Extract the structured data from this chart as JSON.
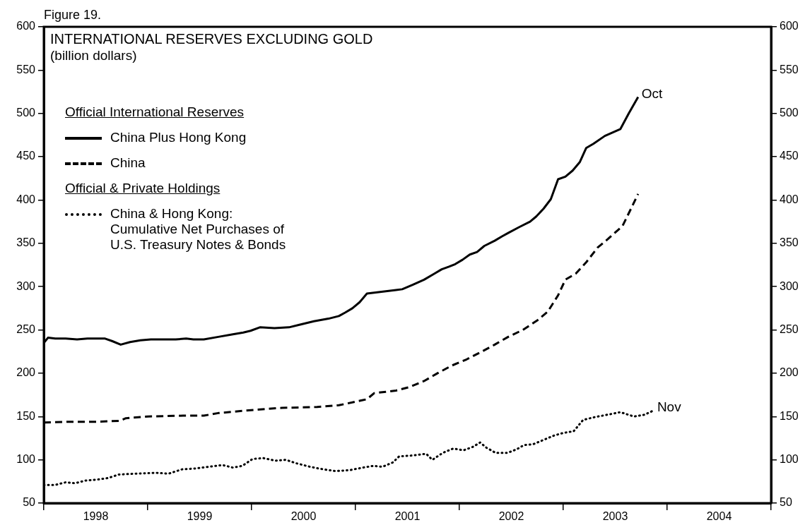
{
  "chart_data": {
    "type": "line",
    "title": "INTERNATIONAL RESERVES EXCLUDING GOLD",
    "subtitle": "(billion dollars)",
    "annotations": [
      "Figure 19.",
      "Official International Reserves",
      "Official & Private Holdings",
      {
        "text": "Oct",
        "x": 2003.72,
        "y": 519
      },
      {
        "text": "Nov",
        "x": 2003.87,
        "y": 157
      }
    ],
    "xlim": [
      1998,
      2005
    ],
    "xticks": [
      {
        "value": 1998,
        "label": null
      },
      {
        "value": 1998.5,
        "label": "1998"
      },
      {
        "value": 1999,
        "label": null
      },
      {
        "value": 1999.5,
        "label": "1999"
      },
      {
        "value": 2000,
        "label": null
      },
      {
        "value": 2000.5,
        "label": "2000"
      },
      {
        "value": 2001,
        "label": null
      },
      {
        "value": 2001.5,
        "label": "2001"
      },
      {
        "value": 2002,
        "label": null
      },
      {
        "value": 2002.5,
        "label": "2002"
      },
      {
        "value": 2003,
        "label": null
      },
      {
        "value": 2003.5,
        "label": "2003"
      },
      {
        "value": 2004,
        "label": null
      },
      {
        "value": 2004.5,
        "label": "2004"
      },
      {
        "value": 2005,
        "label": null
      }
    ],
    "ylim": [
      50,
      600
    ],
    "yticks": [
      50,
      100,
      150,
      200,
      250,
      300,
      350,
      400,
      450,
      500,
      550,
      600
    ],
    "y2lim": [
      50,
      600
    ],
    "y2ticks": [
      50,
      100,
      150,
      200,
      250,
      300,
      350,
      400,
      450,
      500,
      550,
      600
    ],
    "grid": false,
    "legend": "top left",
    "marker": "none",
    "series": [
      {
        "name": "China Plus Hong Kong",
        "color": "#000000",
        "line_style": "solid",
        "x": [
          1998,
          1998.04,
          1998.11,
          1998.21,
          1998.32,
          1998.42,
          1998.59,
          1998.66,
          1998.74,
          1998.83,
          1998.93,
          1999.03,
          1999.13,
          1999.27,
          1999.37,
          1999.44,
          1999.54,
          1999.68,
          1999.82,
          1999.92,
          1999.99,
          2000.08,
          2000.22,
          2000.36,
          2000.46,
          2000.6,
          2000.74,
          2000.84,
          2000.9,
          2000.97,
          2001.04,
          2001.11,
          2001.25,
          2001.39,
          2001.45,
          2001.55,
          2001.66,
          2001.76,
          2001.83,
          2001.9,
          2001.96,
          2002.03,
          2002.1,
          2002.17,
          2002.24,
          2002.34,
          2002.41,
          2002.47,
          2002.58,
          2002.68,
          2002.74,
          2002.81,
          2002.88,
          2002.95,
          2003.02,
          2003.09,
          2003.16,
          2003.22,
          2003.29,
          2003.4,
          2003.55,
          2003.63,
          2003.72
        ],
        "values": [
          235,
          241,
          240,
          240,
          239,
          240,
          240,
          237,
          233,
          236,
          238,
          239,
          239,
          239,
          240,
          239,
          239,
          242,
          245,
          247,
          249,
          253,
          252,
          253,
          256,
          260,
          263,
          266,
          270,
          275,
          282,
          292,
          294,
          296,
          297,
          302,
          308,
          315,
          320,
          323,
          326,
          331,
          337,
          340,
          347,
          353,
          358,
          362,
          369,
          375,
          381,
          390,
          401,
          424,
          427,
          434,
          444,
          460,
          465,
          474,
          482,
          500,
          519
        ]
      },
      {
        "name": "China",
        "color": "#000000",
        "line_style": "dashed",
        "x": [
          1998,
          1998.25,
          1998.52,
          1998.73,
          1998.79,
          1999,
          1999.34,
          1999.54,
          1999.68,
          1999.95,
          2000.29,
          2000.63,
          2000.84,
          2001.11,
          2001.18,
          2001.39,
          2001.52,
          2001.66,
          2001.79,
          2001.93,
          2002.07,
          2002.2,
          2002.34,
          2002.47,
          2002.61,
          2002.75,
          2002.85,
          2002.95,
          2003.02,
          2003.12,
          2003.22,
          2003.33,
          2003.43,
          2003.57,
          2003.66,
          2003.72
        ],
        "values": [
          143,
          144,
          144,
          145,
          148,
          150,
          151,
          151,
          154,
          157,
          160,
          161,
          163,
          170,
          177,
          180,
          184,
          191,
          200,
          209,
          216,
          224,
          233,
          242,
          250,
          261,
          271,
          290,
          308,
          315,
          328,
          345,
          355,
          370,
          392,
          407
        ]
      },
      {
        "name": "China & Hong Kong:\nCumulative Net Purchases of\nU.S. Treasury Notes & Bonds",
        "color": "#000000",
        "line_style": "dotted",
        "x": [
          1998,
          1998.11,
          1998.21,
          1998.3,
          1998.4,
          1998.5,
          1998.62,
          1998.72,
          1998.88,
          1999.08,
          1999.2,
          1999.33,
          1999.46,
          1999.59,
          1999.72,
          1999.82,
          1999.91,
          2000.01,
          2000.11,
          2000.23,
          2000.33,
          2000.43,
          2000.56,
          2000.69,
          2000.81,
          2000.94,
          2001.07,
          2001.17,
          2001.26,
          2001.36,
          2001.42,
          2001.55,
          2001.68,
          2001.74,
          2001.84,
          2001.94,
          2002.04,
          2002.13,
          2002.2,
          2002.26,
          2002.35,
          2002.46,
          2002.55,
          2002.62,
          2002.71,
          2002.81,
          2002.91,
          2003,
          2003.1,
          2003.19,
          2003.29,
          2003.42,
          2003.55,
          2003.68,
          2003.78,
          2003.87
        ],
        "values": [
          71,
          71,
          74,
          73,
          76,
          77,
          79,
          83,
          84,
          85,
          84,
          89,
          90,
          92,
          94,
          91,
          93,
          101,
          102,
          99,
          100,
          96,
          92,
          89,
          87,
          88,
          91,
          93,
          92,
          97,
          104,
          105,
          107,
          100,
          108,
          113,
          111,
          115,
          120,
          114,
          108,
          108,
          112,
          117,
          118,
          123,
          128,
          131,
          133,
          146,
          149,
          152,
          155,
          150,
          152,
          157
        ]
      }
    ]
  }
}
